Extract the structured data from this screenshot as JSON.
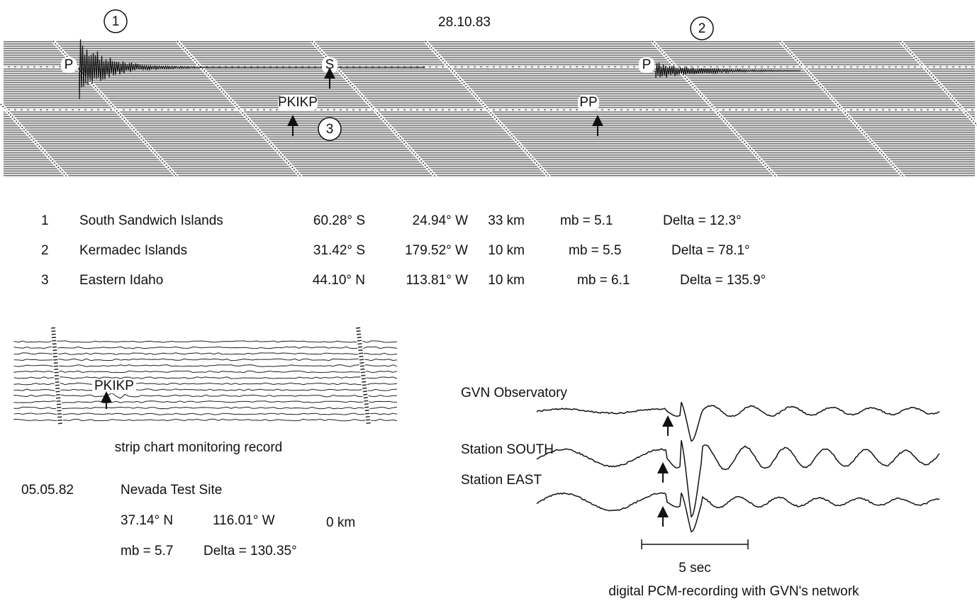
{
  "date": "28.10.83",
  "top_record": {
    "circles": [
      "1",
      "2",
      "3"
    ],
    "phases": [
      "P",
      "S",
      "P",
      "PKIKP",
      "PP"
    ]
  },
  "events": [
    [
      "1",
      "South Sandwich Islands",
      "60.28° S",
      "24.94° W",
      "33 km",
      "mb = 5.1",
      "Delta = 12.3°"
    ],
    [
      "2",
      "Kermadec Islands",
      "31.42° S",
      "179.52° W",
      "10 km",
      "mb = 5.5",
      "Delta = 78.1°"
    ],
    [
      "3",
      "Eastern Idaho",
      "44.10° N",
      "113.81° W",
      "10 km",
      "mb = 6.1",
      "Delta = 135.9°"
    ]
  ],
  "strip_chart": {
    "phase": "PKIKP",
    "caption": "strip chart monitoring record"
  },
  "nevada": {
    "date": "05.05.82",
    "name": "Nevada Test Site",
    "lat": "37.14° N",
    "lon": "116.01° W",
    "depth": "0 km",
    "mb": "mb = 5.7",
    "delta": "Delta = 130.35°"
  },
  "pcm": {
    "stations": [
      "GVN Observatory",
      "Station SOUTH",
      "Station EAST"
    ],
    "scale": "5 sec",
    "caption": "digital PCM-recording with GVN's network"
  }
}
